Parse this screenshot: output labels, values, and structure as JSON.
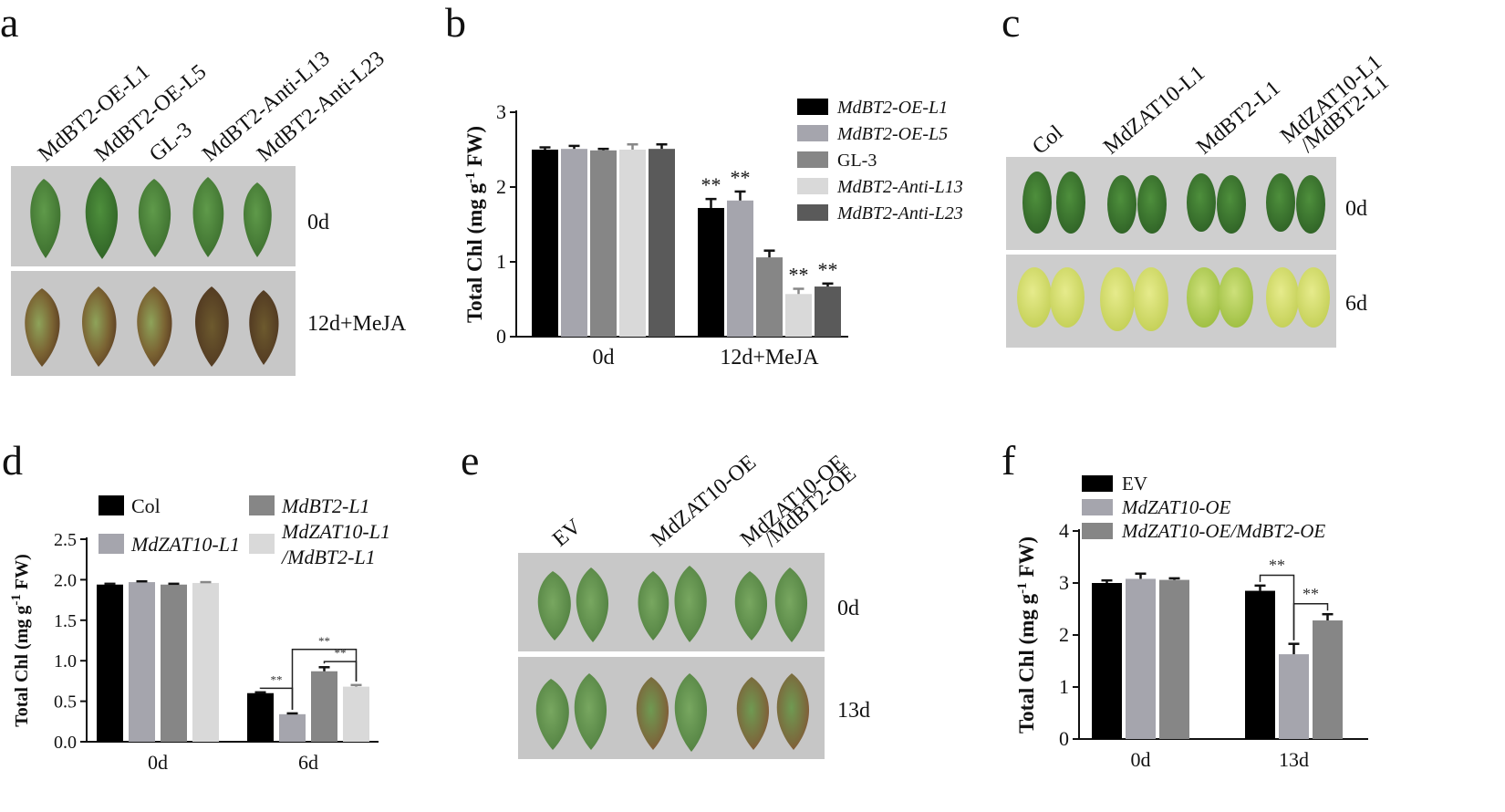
{
  "panels": {
    "a": {
      "letter": "a",
      "columns": [
        "MdBT2-OE-L1",
        "MdBT2-OE-L5",
        "GL-3",
        "MdBT2-Anti-L13",
        "MdBT2-Anti-L23"
      ],
      "rows": [
        "0d",
        "12d+MeJA"
      ]
    },
    "c": {
      "letter": "c",
      "columns": [
        "Col",
        "MdZAT10-L1",
        "MdBT2-L1",
        "MdZAT10-L1",
        "/MdBT2-L1"
      ],
      "rows": [
        "0d",
        "6d"
      ]
    },
    "e": {
      "letter": "e",
      "columns": [
        "EV",
        "MdZAT10-OE",
        "MdZAT10-OE",
        "/MdBT2-OE"
      ],
      "rows": [
        "0d",
        "13d"
      ]
    },
    "b": {
      "letter": "b"
    },
    "d": {
      "letter": "d"
    },
    "f": {
      "letter": "f"
    }
  },
  "chart_data": [
    {
      "panel": "b",
      "type": "bar",
      "ylabel": "Total Chl (mg g-1 FW)",
      "ylabel_main": "Total Chl (mg g",
      "ylabel_sup": "-1",
      "ylabel_end": " FW)",
      "ylim": [
        0,
        3
      ],
      "yticks": [
        "0",
        "1",
        "2",
        "3"
      ],
      "categories": [
        "0d",
        "12d+MeJA"
      ],
      "legend_position": "top-right",
      "series": [
        {
          "name": "MdBT2-OE-L1",
          "color": "#000000",
          "values": [
            2.5,
            1.72
          ],
          "errors": [
            0.03,
            0.12
          ],
          "sig": [
            "",
            "**"
          ]
        },
        {
          "name": "MdBT2-OE-L5",
          "color": "#a5a5ad",
          "values": [
            2.51,
            1.82
          ],
          "errors": [
            0.04,
            0.12
          ],
          "sig": [
            "",
            "**"
          ]
        },
        {
          "name": "GL-3",
          "color": "#868686",
          "values": [
            2.49,
            1.06
          ],
          "errors": [
            0.02,
            0.09
          ],
          "sig": [
            "",
            ""
          ]
        },
        {
          "name": "MdBT2-Anti-L13",
          "color": "#d9d9d9",
          "values": [
            2.5,
            0.57
          ],
          "errors": [
            0.07,
            0.07
          ],
          "sig": [
            "",
            "**"
          ]
        },
        {
          "name": "MdBT2-Anti-L23",
          "color": "#5a5a5a",
          "values": [
            2.51,
            0.67
          ],
          "errors": [
            0.06,
            0.04
          ],
          "sig": [
            "",
            "**"
          ]
        }
      ]
    },
    {
      "panel": "d",
      "type": "bar",
      "ylabel": "Total Chl (mg g-1 FW)",
      "ylabel_main": "Total Chl (mg g",
      "ylabel_sup": "-1",
      "ylabel_end": " FW)",
      "ylim": [
        0,
        2.5
      ],
      "yticks": [
        "0.0",
        "0.5",
        "1.0",
        "1.5",
        "2.0",
        "2.5"
      ],
      "categories": [
        "0d",
        "6d"
      ],
      "legend_position": "top",
      "series": [
        {
          "name": "Col",
          "color": "#000000",
          "values": [
            1.94,
            0.6
          ],
          "errors": [
            0.01,
            0.01
          ]
        },
        {
          "name": "MdZAT10-L1",
          "color": "#a5a5ad",
          "values": [
            1.97,
            0.34
          ],
          "errors": [
            0.01,
            0.01
          ]
        },
        {
          "name": "MdBT2-L1",
          "color": "#868686",
          "values": [
            1.94,
            0.87
          ],
          "errors": [
            0.01,
            0.05
          ]
        },
        {
          "name": "MdZAT10-L1 /MdBT2-L1",
          "name_line1": "MdZAT10-L1",
          "name_line2": "/MdBT2-L1",
          "color": "#d9d9d9",
          "values": [
            1.96,
            0.68
          ],
          "errors": [
            0.01,
            0.02
          ]
        }
      ],
      "significance": [
        {
          "label": "**",
          "between": [
            0,
            1
          ],
          "category": 1
        },
        {
          "label": "**",
          "between": [
            1,
            3
          ],
          "category": 1
        },
        {
          "label": "**",
          "between": [
            2,
            3
          ],
          "category": 1
        }
      ]
    },
    {
      "panel": "f",
      "type": "bar",
      "ylabel": "Total Chl (mg g-1 FW)",
      "ylabel_main": "Total Chl (mg g",
      "ylabel_sup": "-1",
      "ylabel_end": " FW)",
      "ylim": [
        0,
        4
      ],
      "yticks": [
        "0",
        "1",
        "2",
        "3",
        "4"
      ],
      "categories": [
        "0d",
        "13d"
      ],
      "legend_position": "top-left",
      "series": [
        {
          "name": "EV",
          "color": "#000000",
          "values": [
            3.0,
            2.85
          ],
          "errors": [
            0.05,
            0.1
          ]
        },
        {
          "name": "MdZAT10-OE",
          "color": "#a5a5ad",
          "values": [
            3.08,
            1.63
          ],
          "errors": [
            0.1,
            0.2
          ]
        },
        {
          "name": "MdZAT10-OE/MdBT2-OE",
          "color": "#868686",
          "values": [
            3.06,
            2.28
          ],
          "errors": [
            0.03,
            0.12
          ]
        }
      ],
      "significance": [
        {
          "label": "**",
          "between": [
            0,
            1
          ],
          "category": 1
        },
        {
          "label": "**",
          "between": [
            1,
            2
          ],
          "category": 1
        }
      ]
    }
  ]
}
